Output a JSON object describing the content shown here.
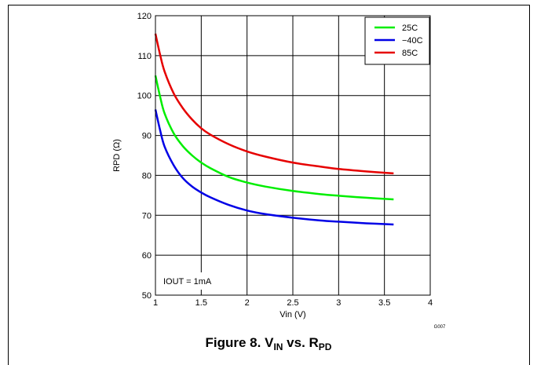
{
  "chart_data": {
    "type": "line",
    "xlabel": "Vin (V)",
    "ylabel": "RPD (Ω)",
    "xlim": [
      1,
      4
    ],
    "ylim": [
      50,
      120
    ],
    "x_ticks": [
      "1",
      "1.5",
      "2",
      "2.5",
      "3",
      "3.5",
      "4"
    ],
    "y_ticks": [
      "50",
      "60",
      "70",
      "80",
      "90",
      "100",
      "110",
      "120"
    ],
    "grid": true,
    "legend_position": "top-right",
    "annotation": "IOUT = 1mA",
    "figure_code": "G007",
    "series": [
      {
        "name": "25C",
        "color": "#00ee00",
        "x": [
          1.0,
          1.05,
          1.1,
          1.2,
          1.3,
          1.4,
          1.5,
          1.6,
          1.8,
          2.0,
          2.2,
          2.5,
          2.8,
          3.0,
          3.3,
          3.6
        ],
        "y": [
          105.0,
          99.8,
          95.5,
          90.5,
          87.3,
          85.0,
          83.2,
          81.8,
          79.6,
          78.2,
          77.2,
          76.1,
          75.3,
          74.9,
          74.4,
          74.0
        ]
      },
      {
        "name": "−40C",
        "color": "#0000e6",
        "x": [
          1.0,
          1.05,
          1.1,
          1.2,
          1.3,
          1.4,
          1.5,
          1.6,
          1.8,
          2.0,
          2.2,
          2.5,
          2.8,
          3.0,
          3.3,
          3.6
        ],
        "y": [
          96.5,
          91.4,
          87.2,
          82.5,
          79.3,
          77.2,
          75.7,
          74.5,
          72.6,
          71.2,
          70.3,
          69.4,
          68.7,
          68.4,
          68.0,
          67.7
        ]
      },
      {
        "name": "85C",
        "color": "#e60000",
        "x": [
          1.0,
          1.05,
          1.1,
          1.2,
          1.3,
          1.4,
          1.5,
          1.6,
          1.8,
          2.0,
          2.2,
          2.5,
          2.8,
          3.0,
          3.3,
          3.6
        ],
        "y": [
          115.5,
          110.3,
          106.0,
          100.5,
          96.8,
          94.0,
          91.8,
          90.2,
          87.8,
          86.0,
          84.7,
          83.2,
          82.2,
          81.6,
          81.0,
          80.5
        ]
      }
    ]
  },
  "caption": {
    "prefix": "Figure 8. V",
    "sub1": "IN",
    "middle": " vs. R",
    "sub2": "PD"
  }
}
